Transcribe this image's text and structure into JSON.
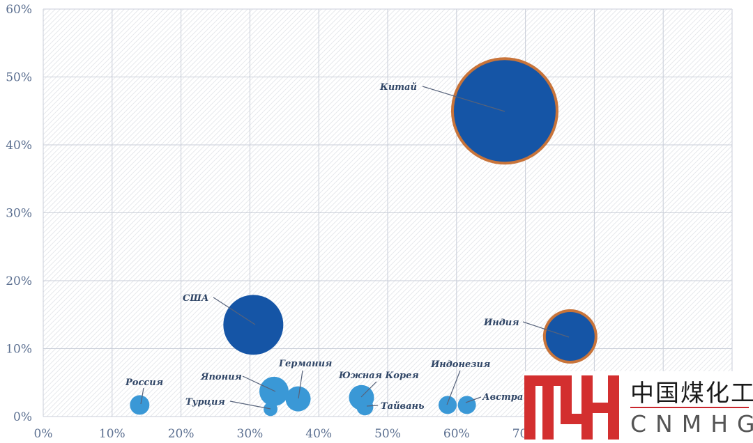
{
  "chart_data": {
    "type": "scatter",
    "subtype": "bubble",
    "xlim": [
      0,
      100
    ],
    "ylim": [
      0,
      60
    ],
    "x_ticks": [
      "0%",
      "10%",
      "20%",
      "30%",
      "40%",
      "50%",
      "60%",
      "70%"
    ],
    "y_ticks": [
      "0%",
      "10%",
      "20%",
      "30%",
      "40%",
      "50%",
      "60%"
    ],
    "grid": true,
    "points": [
      {
        "label": "Китай",
        "x": 67,
        "y": 45,
        "size": 75,
        "color": "#1555a6",
        "outline": "#c8743a"
      },
      {
        "label": "США",
        "x": 30.5,
        "y": 13.5,
        "size": 43,
        "color": "#1555a6",
        "outline": ""
      },
      {
        "label": "Индия",
        "x": 76.5,
        "y": 11.8,
        "size": 37,
        "color": "#1555a6",
        "outline": "#c8743a"
      },
      {
        "label": "Россия",
        "x": 14,
        "y": 1.7,
        "size": 14,
        "color": "#3a98d6",
        "outline": ""
      },
      {
        "label": "Япония",
        "x": 33.5,
        "y": 3.7,
        "size": 21,
        "color": "#3a98d6",
        "outline": ""
      },
      {
        "label": "Турция",
        "x": 33,
        "y": 1.1,
        "size": 10,
        "color": "#3a98d6",
        "outline": ""
      },
      {
        "label": "Германия",
        "x": 37,
        "y": 2.6,
        "size": 18,
        "color": "#3a98d6",
        "outline": ""
      },
      {
        "label": "Южная Корея",
        "x": 46.2,
        "y": 2.8,
        "size": 18,
        "color": "#3a98d6",
        "outline": ""
      },
      {
        "label": "Тайвань",
        "x": 46.7,
        "y": 1.4,
        "size": 12,
        "color": "#3a98d6",
        "outline": ""
      },
      {
        "label": "Индонезия",
        "x": 58.7,
        "y": 1.7,
        "size": 13,
        "color": "#3a98d6",
        "outline": ""
      },
      {
        "label": "Австра",
        "x": 61.5,
        "y": 1.7,
        "size": 13,
        "color": "#3a98d6",
        "outline": ""
      }
    ]
  },
  "logo": {
    "mark": "MH",
    "name_cn": "中国煤化工",
    "name_en": "CNMHG",
    "color_red": "#d32f2f"
  }
}
